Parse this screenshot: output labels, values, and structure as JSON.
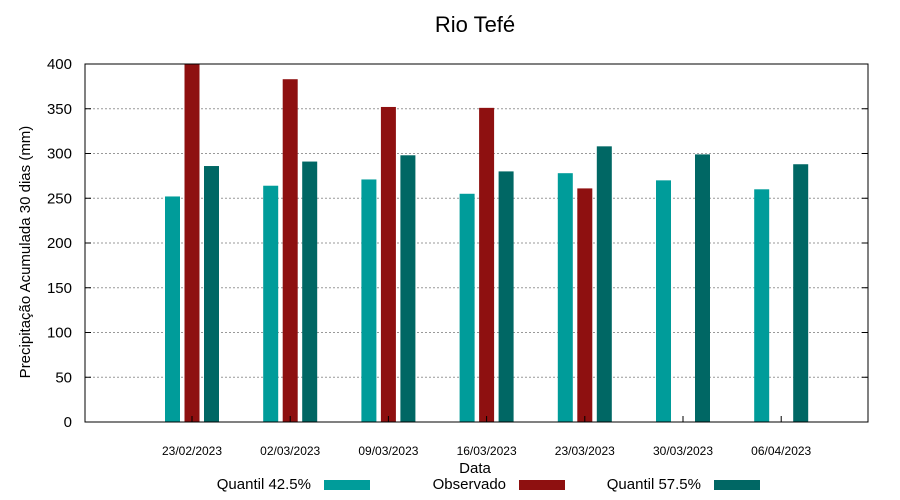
{
  "chart_data": {
    "type": "bar",
    "title": "Rio Tefé",
    "xlabel": "Data",
    "ylabel": "Precipitação Acumulada 30 dias (mm)",
    "ylim": [
      0,
      400
    ],
    "yticks": [
      0,
      50,
      100,
      150,
      200,
      250,
      300,
      350,
      400
    ],
    "grid": true,
    "legend_position": "bottom",
    "categories": [
      "23/02/2023",
      "02/03/2023",
      "09/03/2023",
      "16/03/2023",
      "23/03/2023",
      "30/03/2023",
      "06/04/2023"
    ],
    "series": [
      {
        "name": "Quantil 42.5%",
        "color": "#009c9a",
        "values": [
          252,
          264,
          271,
          255,
          278,
          270,
          260
        ]
      },
      {
        "name": "Observado",
        "color": "#8e1010",
        "values": [
          400,
          383,
          352,
          351,
          261,
          null,
          null
        ]
      },
      {
        "name": "Quantil 57.5%",
        "color": "#006764",
        "values": [
          286,
          291,
          298,
          280,
          308,
          299,
          288
        ]
      }
    ]
  }
}
